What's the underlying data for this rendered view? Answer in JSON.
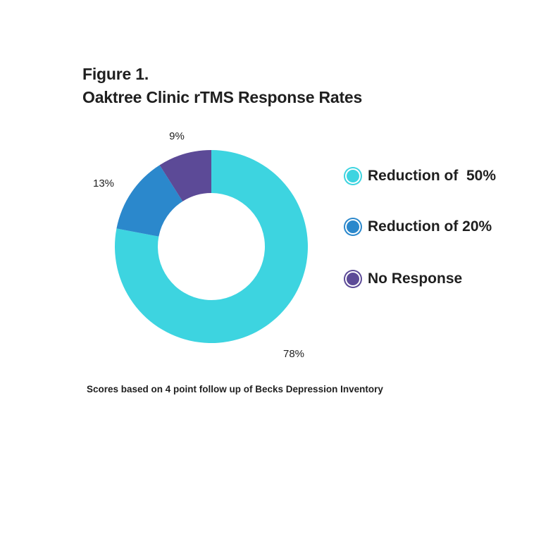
{
  "figure": {
    "label": "Figure 1.",
    "title": "Oaktree Clinic rTMS Response Rates",
    "footnote": "Scores based on 4 point follow up of Becks Depression Inventory"
  },
  "chart_data": {
    "type": "pie",
    "style": "donut",
    "title": "Oaktree Clinic rTMS Response Rates",
    "series": [
      {
        "name": "Reduction of  50%",
        "value": 78,
        "label": "78%",
        "color": "#3dd4e0"
      },
      {
        "name": "Reduction of 20%",
        "value": 13,
        "label": "13%",
        "color": "#2b88cc"
      },
      {
        "name": "No Response",
        "value": 9,
        "label": "9%",
        "color": "#5c4a97"
      }
    ],
    "legend_position": "right"
  }
}
